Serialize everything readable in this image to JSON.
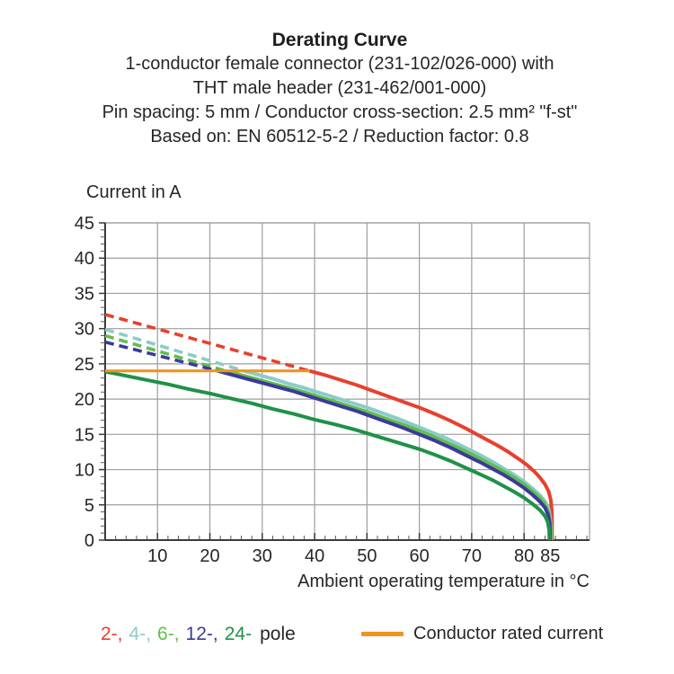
{
  "title": {
    "heading": "Derating Curve",
    "lines": [
      "1-conductor female connector (231-102/026-000) with",
      "THT male header (231-462/001-000)",
      "Pin spacing: 5 mm / Conductor cross-section: 2.5 mm² \"f-st\"",
      "Based on: EN 60512-5-2 / Reduction factor: 0.8"
    ]
  },
  "chart_data": {
    "type": "line",
    "title": "Derating Curve",
    "xlabel": "Ambient operating temperature in °C",
    "ylabel": "Current in A",
    "xlim": [
      0,
      92.5
    ],
    "ylim": [
      0,
      45
    ],
    "grid": true,
    "x_gridlines": [
      10,
      20,
      30,
      40,
      50,
      60,
      70,
      80
    ],
    "y_gridlines": [
      5,
      10,
      15,
      20,
      25,
      30,
      35,
      40,
      45
    ],
    "x_tick_values": [
      10,
      20,
      30,
      40,
      50,
      60,
      70,
      80,
      85
    ],
    "x_tick_labels": [
      "10",
      "20",
      "30",
      "40",
      "50",
      "60",
      "70",
      "80",
      "85"
    ],
    "y_tick_values": [
      0,
      5,
      10,
      15,
      20,
      25,
      30,
      35,
      40,
      45
    ],
    "y_tick_labels": [
      "0",
      "5",
      "10",
      "15",
      "20",
      "25",
      "30",
      "35",
      "40",
      "45"
    ],
    "x_minor_tick_step": 2,
    "y_minor_tick_step": 1,
    "rated_current": {
      "name": "Conductor rated current",
      "value": 24,
      "color": "#f0941f",
      "points": [
        [
          0,
          24
        ],
        [
          39,
          24
        ]
      ]
    },
    "series": [
      {
        "name": "2-pole",
        "color": "#e8402e",
        "dashed": [
          [
            0,
            32
          ],
          [
            39,
            24
          ]
        ],
        "solid": [
          [
            39,
            24
          ],
          [
            42,
            23.4
          ],
          [
            45,
            22.7
          ],
          [
            48,
            22
          ],
          [
            51,
            21.2
          ],
          [
            54,
            20.4
          ],
          [
            57,
            19.6
          ],
          [
            60,
            18.8
          ],
          [
            63,
            17.9
          ],
          [
            66,
            16.9
          ],
          [
            69,
            15.8
          ],
          [
            72,
            14.6
          ],
          [
            75,
            13.4
          ],
          [
            77,
            12.5
          ],
          [
            79,
            11.5
          ],
          [
            80.5,
            10.7
          ],
          [
            82,
            9.7
          ],
          [
            83,
            8.9
          ],
          [
            84,
            7.9
          ],
          [
            84.7,
            6.9
          ],
          [
            85.1,
            5.7
          ],
          [
            85.3,
            4.2
          ],
          [
            85.35,
            2.5
          ],
          [
            85.35,
            0
          ]
        ]
      },
      {
        "name": "4-pole",
        "color": "#8accc9",
        "dashed": [
          [
            0,
            29.9
          ],
          [
            26.5,
            24
          ]
        ],
        "solid": [
          [
            26.5,
            24
          ],
          [
            29,
            23.5
          ],
          [
            32,
            22.9
          ],
          [
            35,
            22.2
          ],
          [
            38,
            21.6
          ],
          [
            41,
            20.9
          ],
          [
            44,
            20.2
          ],
          [
            47,
            19.5
          ],
          [
            50,
            18.8
          ],
          [
            53,
            18
          ],
          [
            56,
            17.2
          ],
          [
            59,
            16.3
          ],
          [
            62,
            15.4
          ],
          [
            65,
            14.5
          ],
          [
            68,
            13.4
          ],
          [
            71,
            12.3
          ],
          [
            74,
            11.1
          ],
          [
            76,
            10.2
          ],
          [
            78,
            9.3
          ],
          [
            80,
            8.3
          ],
          [
            81.5,
            7.4
          ],
          [
            83,
            6.4
          ],
          [
            84,
            5.5
          ],
          [
            84.7,
            4.4
          ],
          [
            85,
            3.2
          ],
          [
            85.15,
            1.8
          ],
          [
            85.15,
            0
          ]
        ]
      },
      {
        "name": "6-pole",
        "color": "#62bd4c",
        "dashed": [
          [
            0,
            29
          ],
          [
            23,
            24
          ]
        ],
        "solid": [
          [
            23,
            24
          ],
          [
            26,
            23.4
          ],
          [
            29,
            22.8
          ],
          [
            32,
            22.2
          ],
          [
            35,
            21.6
          ],
          [
            38,
            21
          ],
          [
            41,
            20.3
          ],
          [
            44,
            19.6
          ],
          [
            47,
            18.9
          ],
          [
            50,
            18.2
          ],
          [
            53,
            17.4
          ],
          [
            56,
            16.6
          ],
          [
            59,
            15.8
          ],
          [
            62,
            14.9
          ],
          [
            65,
            13.9
          ],
          [
            68,
            12.9
          ],
          [
            71,
            11.8
          ],
          [
            74,
            10.6
          ],
          [
            76,
            9.8
          ],
          [
            78,
            8.9
          ],
          [
            80,
            7.9
          ],
          [
            81.5,
            7
          ],
          [
            83,
            6
          ],
          [
            84,
            5.1
          ],
          [
            84.6,
            4
          ],
          [
            84.95,
            2.8
          ],
          [
            85.05,
            1.4
          ],
          [
            85.05,
            0
          ]
        ]
      },
      {
        "name": "12-pole",
        "color": "#3c3a9d",
        "dashed": [
          [
            0,
            28.1
          ],
          [
            21.5,
            24
          ]
        ],
        "solid": [
          [
            21.5,
            24
          ],
          [
            24,
            23.5
          ],
          [
            27,
            22.9
          ],
          [
            30,
            22.3
          ],
          [
            33,
            21.7
          ],
          [
            36,
            21.1
          ],
          [
            39,
            20.4
          ],
          [
            42,
            19.7
          ],
          [
            45,
            19
          ],
          [
            48,
            18.3
          ],
          [
            51,
            17.5
          ],
          [
            54,
            16.7
          ],
          [
            57,
            15.9
          ],
          [
            60,
            15
          ],
          [
            63,
            14.1
          ],
          [
            66,
            13.1
          ],
          [
            69,
            12
          ],
          [
            72,
            10.9
          ],
          [
            74,
            10.1
          ],
          [
            76,
            9.3
          ],
          [
            78,
            8.4
          ],
          [
            80,
            7.4
          ],
          [
            81.5,
            6.5
          ],
          [
            83,
            5.5
          ],
          [
            84,
            4.6
          ],
          [
            84.6,
            3.6
          ],
          [
            84.9,
            2.4
          ],
          [
            84.95,
            1.2
          ],
          [
            84.95,
            0
          ]
        ]
      },
      {
        "name": "24-pole",
        "color": "#1f9149",
        "solid": [
          [
            0,
            23.9
          ],
          [
            4,
            23.3
          ],
          [
            8,
            22.7
          ],
          [
            12,
            22.1
          ],
          [
            16,
            21.4
          ],
          [
            20,
            20.8
          ],
          [
            24,
            20.1
          ],
          [
            28,
            19.4
          ],
          [
            32,
            18.6
          ],
          [
            36,
            17.9
          ],
          [
            40,
            17.1
          ],
          [
            44,
            16.4
          ],
          [
            48,
            15.6
          ],
          [
            52,
            14.7
          ],
          [
            56,
            13.8
          ],
          [
            60,
            12.9
          ],
          [
            63,
            12.1
          ],
          [
            66,
            11.2
          ],
          [
            69,
            10.2
          ],
          [
            72,
            9.2
          ],
          [
            74,
            8.5
          ],
          [
            76,
            7.7
          ],
          [
            78,
            6.9
          ],
          [
            80,
            6
          ],
          [
            81.5,
            5.2
          ],
          [
            83,
            4.3
          ],
          [
            84,
            3.4
          ],
          [
            84.5,
            2.6
          ],
          [
            84.8,
            1.4
          ],
          [
            84.85,
            0
          ]
        ]
      }
    ]
  },
  "legend": {
    "pole_items": [
      {
        "label": "2-,",
        "color": "#e8402e"
      },
      {
        "label": "4-,",
        "color": "#8accc9"
      },
      {
        "label": "6-,",
        "color": "#62bd4c"
      },
      {
        "label": "12-,",
        "color": "#3c3a9d"
      },
      {
        "label": "24-",
        "color": "#1f9149"
      }
    ],
    "pole_suffix": "pole",
    "suffix_color": "#262626",
    "rated_label": "Conductor rated current"
  },
  "colors": {
    "grid": "#9e9e9e",
    "axis": "#3b3b3b",
    "tick": "#5a5a5a",
    "text": "#262626"
  }
}
